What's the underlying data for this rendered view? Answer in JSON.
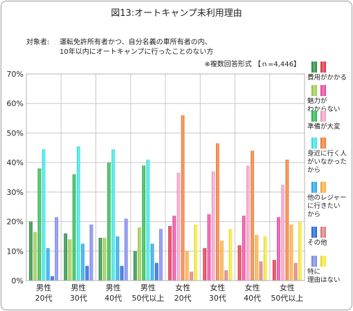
{
  "title": "図13:オートキャンプ未利用理由",
  "subject": {
    "label": "対象者:",
    "line1": "運転免許所有者かつ、自分名義の車所有者の内、",
    "line2": "10年以内にオートキャンプに行ったことのない方"
  },
  "note": "※複数回答形式 【ｎ=4,446】",
  "chart_data": {
    "type": "bar",
    "categories": [
      [
        "男性",
        "20代"
      ],
      [
        "男性",
        "30代"
      ],
      [
        "男性",
        "40代"
      ],
      [
        "男性",
        "50代以上"
      ],
      [
        "女性",
        "20代"
      ],
      [
        "女性",
        "30代"
      ],
      [
        "女性",
        "40代"
      ],
      [
        "女性",
        "50代以上"
      ]
    ],
    "ylim": [
      0,
      70
    ],
    "yticks": [
      0,
      10,
      20,
      30,
      40,
      50,
      60,
      70
    ],
    "ytick_labels": [
      "0%",
      "10%",
      "20%",
      "30%",
      "40%",
      "50%",
      "60%",
      "70%"
    ],
    "grid": true,
    "legend_position": "right",
    "series": [
      {
        "name": "費用がかかる",
        "label_lines": [
          "費用がかかる"
        ],
        "male_color": "#1f8a3a",
        "female_color": "#e8293f",
        "values": [
          20,
          16,
          14.5,
          10,
          18.5,
          11,
          12,
          7
        ]
      },
      {
        "name": "魅力がわからない",
        "label_lines": [
          "魅力が",
          "わからない"
        ],
        "male_color": "#9acd45",
        "female_color": "#f03fa0",
        "values": [
          16.5,
          14,
          14.5,
          18,
          22,
          22.5,
          22,
          21.5
        ]
      },
      {
        "name": "準備が大変",
        "label_lines": [
          "準備が大変"
        ],
        "male_color": "#20b84a",
        "female_color": "#f5a0c8",
        "values": [
          38,
          36,
          40,
          39,
          36.5,
          37,
          39,
          32.5
        ]
      },
      {
        "name": "身近に行く人がいなかったから",
        "label_lines": [
          "身近に行く人",
          "がいなかった",
          "から"
        ],
        "male_color": "#33e8e8",
        "female_color": "#f5792d",
        "values": [
          44.5,
          45.5,
          44.5,
          41,
          56,
          46.5,
          44,
          41
        ]
      },
      {
        "name": "他のレジャーに行きたいから",
        "label_lines": [
          "他のレジャー",
          "に行きたい",
          "から"
        ],
        "male_color": "#1ea6f0",
        "female_color": "#ffad3a",
        "values": [
          11,
          12.5,
          15,
          12.5,
          10,
          13.5,
          15.5,
          19
        ]
      },
      {
        "name": "その他",
        "label_lines": [
          "その他"
        ],
        "male_color": "#1a5fd8",
        "female_color": "#e07a7a",
        "values": [
          1.5,
          5,
          5,
          6,
          3,
          3.5,
          6.5,
          6
        ]
      },
      {
        "name": "特に理由はない",
        "label_lines": [
          "特に",
          "理由はない"
        ],
        "male_color": "#7a86f0",
        "female_color": "#f5ea30",
        "values": [
          21.5,
          19,
          21,
          17.5,
          19,
          17.5,
          15,
          20
        ]
      }
    ]
  }
}
